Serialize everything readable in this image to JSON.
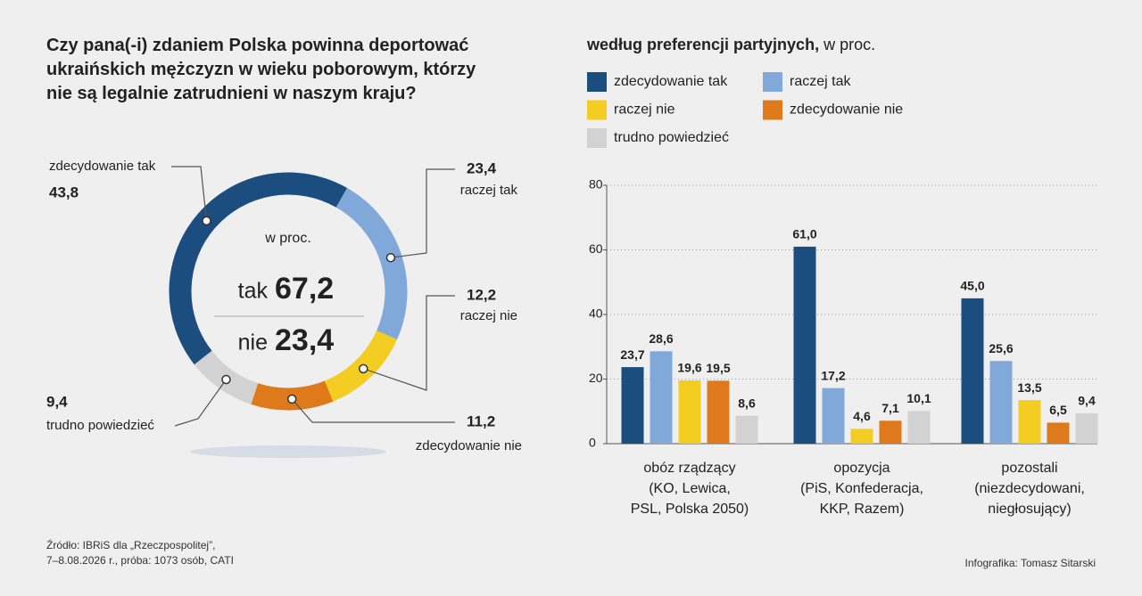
{
  "chart_data": [
    {
      "type": "pie",
      "title": "Czy pana(-i) zdaniem Polska powinna deportować ukraińskich mężczyzn w wieku poborowym, którzy nie są legalnie zatrudnieni w naszym kraju?",
      "categories": [
        "zdecydowanie tak",
        "raczej tak",
        "raczej nie",
        "zdecydowanie nie",
        "trudno powiedzieć"
      ],
      "values": [
        43.8,
        23.4,
        12.2,
        11.2,
        9.4
      ],
      "value_labels": [
        "43,8",
        "23,4",
        "12,2",
        "11,2",
        "9,4"
      ],
      "colors": [
        "#1b4d7e",
        "#80a8d9",
        "#f4cd22",
        "#df7a1c",
        "#d2d2d2"
      ],
      "unit": "w proc.",
      "totals": [
        {
          "name": "tak",
          "value": 67.2,
          "label": "67,2",
          "color": "#1f4d7a"
        },
        {
          "name": "nie",
          "value": 23.4,
          "label": "23,4",
          "color": "#d9691c"
        }
      ]
    },
    {
      "type": "bar",
      "title": "według preferencji partyjnych,",
      "unit": "w proc.",
      "categories": [
        "obóz rządzący\n(KO, Lewica,\nPSL, Polska 2050)",
        "opozycja\n(PiS, Konfederacja,\nKKP, Razem)",
        "pozostali\n(niezdecydowani,\nniegłosujący)"
      ],
      "series": [
        {
          "name": "zdecydowanie tak",
          "color": "#1b4d7e",
          "values": [
            23.7,
            61.0,
            45.0
          ],
          "value_labels": [
            "23,7",
            "61,0",
            "45,0"
          ]
        },
        {
          "name": "raczej tak",
          "color": "#80a8d9",
          "values": [
            28.6,
            17.2,
            25.6
          ],
          "value_labels": [
            "28,6",
            "17,2",
            "25,6"
          ]
        },
        {
          "name": "raczej nie",
          "color": "#f4cd22",
          "values": [
            19.6,
            4.6,
            13.5
          ],
          "value_labels": [
            "19,6",
            "4,6",
            "13,5"
          ]
        },
        {
          "name": "zdecydowanie nie",
          "color": "#df7a1c",
          "values": [
            19.5,
            7.1,
            6.5
          ],
          "value_labels": [
            "19,5",
            "7,1",
            "6,5"
          ]
        },
        {
          "name": "trudno powiedzieć",
          "color": "#d2d2d2",
          "values": [
            8.6,
            10.1,
            9.4
          ],
          "value_labels": [
            "8,6",
            "10,1",
            "9,4"
          ]
        }
      ],
      "ylim": [
        0,
        80
      ],
      "yticks": [
        0,
        20,
        40,
        60,
        80
      ],
      "grid": true
    }
  ],
  "footer": {
    "source": "Źródło: IBRiS dla „Rzeczpospolitej”,\n7–8.08.2026 r., próba: 1073 osób, CATI",
    "credit": "Infografika: Tomasz Sitarski"
  }
}
